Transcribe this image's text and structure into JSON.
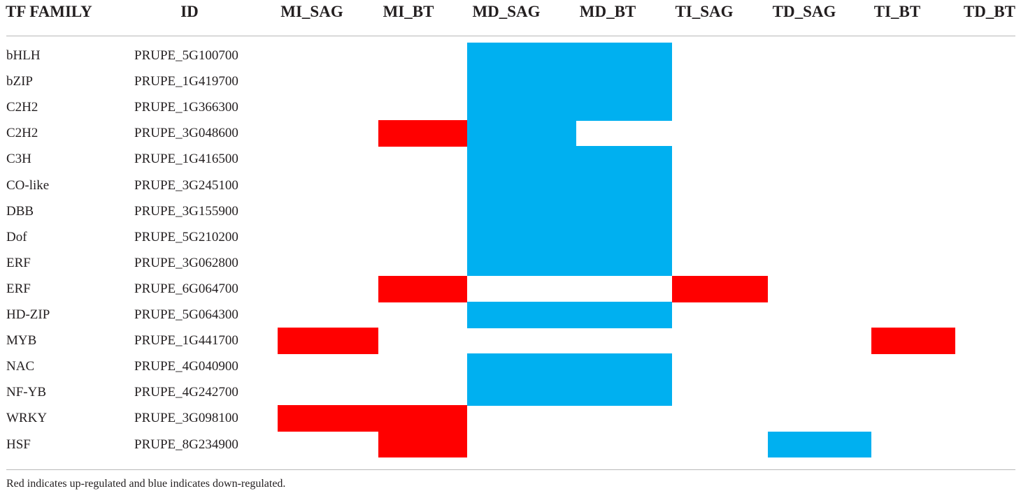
{
  "colors": {
    "up": "#ff0000",
    "down": "#00b0f0"
  },
  "columns": [
    "TF FAMILY",
    "ID",
    "MI_SAG",
    "MI_BT",
    "MD_SAG",
    "MD_BT",
    "TI_SAG",
    "TD_SAG",
    "TI_BT",
    "TD_BT"
  ],
  "rows": [
    {
      "family": "bHLH",
      "id": "PRUPE_5G100700",
      "cells": [
        0,
        0,
        -1,
        -1,
        0,
        0,
        0,
        0
      ]
    },
    {
      "family": "bZIP",
      "id": "PRUPE_1G419700",
      "cells": [
        0,
        0,
        -1,
        -1,
        0,
        0,
        0,
        0
      ]
    },
    {
      "family": "C2H2",
      "id": "PRUPE_1G366300",
      "cells": [
        0,
        0,
        -1,
        -1,
        0,
        0,
        0,
        0
      ]
    },
    {
      "family": "C2H2",
      "id": "PRUPE_3G048600",
      "cells": [
        0,
        1,
        -1,
        0,
        0,
        0,
        0,
        0
      ]
    },
    {
      "family": "C3H",
      "id": "PRUPE_1G416500",
      "cells": [
        0,
        0,
        -1,
        -1,
        0,
        0,
        0,
        0
      ]
    },
    {
      "family": "CO-like",
      "id": "PRUPE_3G245100",
      "cells": [
        0,
        0,
        -1,
        -1,
        0,
        0,
        0,
        0
      ]
    },
    {
      "family": "DBB",
      "id": "PRUPE_3G155900",
      "cells": [
        0,
        0,
        -1,
        -1,
        0,
        0,
        0,
        0
      ]
    },
    {
      "family": "Dof",
      "id": "PRUPE_5G210200",
      "cells": [
        0,
        0,
        -1,
        -1,
        0,
        0,
        0,
        0
      ]
    },
    {
      "family": "ERF",
      "id": "PRUPE_3G062800",
      "cells": [
        0,
        0,
        -1,
        -1,
        0,
        0,
        0,
        0
      ]
    },
    {
      "family": "ERF",
      "id": "PRUPE_6G064700",
      "cells": [
        0,
        1,
        0,
        0,
        1,
        0,
        0,
        0
      ]
    },
    {
      "family": "HD-ZIP",
      "id": "PRUPE_5G064300",
      "cells": [
        0,
        0,
        -1,
        -1,
        0,
        0,
        0,
        0
      ]
    },
    {
      "family": "MYB",
      "id": "PRUPE_1G441700",
      "cells": [
        1,
        0,
        0,
        0,
        0,
        0,
        1,
        0
      ]
    },
    {
      "family": "NAC",
      "id": "PRUPE_4G040900",
      "cells": [
        0,
        0,
        -1,
        -1,
        0,
        0,
        0,
        0
      ]
    },
    {
      "family": "NF-YB",
      "id": "PRUPE_4G242700",
      "cells": [
        0,
        0,
        -1,
        -1,
        0,
        0,
        0,
        0
      ]
    },
    {
      "family": "WRKY",
      "id": "PRUPE_3G098100",
      "cells": [
        1,
        1,
        0,
        0,
        0,
        0,
        0,
        0
      ]
    },
    {
      "family": "HSF",
      "id": "PRUPE_8G234900",
      "cells": [
        0,
        1,
        0,
        0,
        0,
        -1,
        0,
        0
      ]
    }
  ],
  "footnote": "Red indicates up-regulated and blue indicates down-regulated."
}
